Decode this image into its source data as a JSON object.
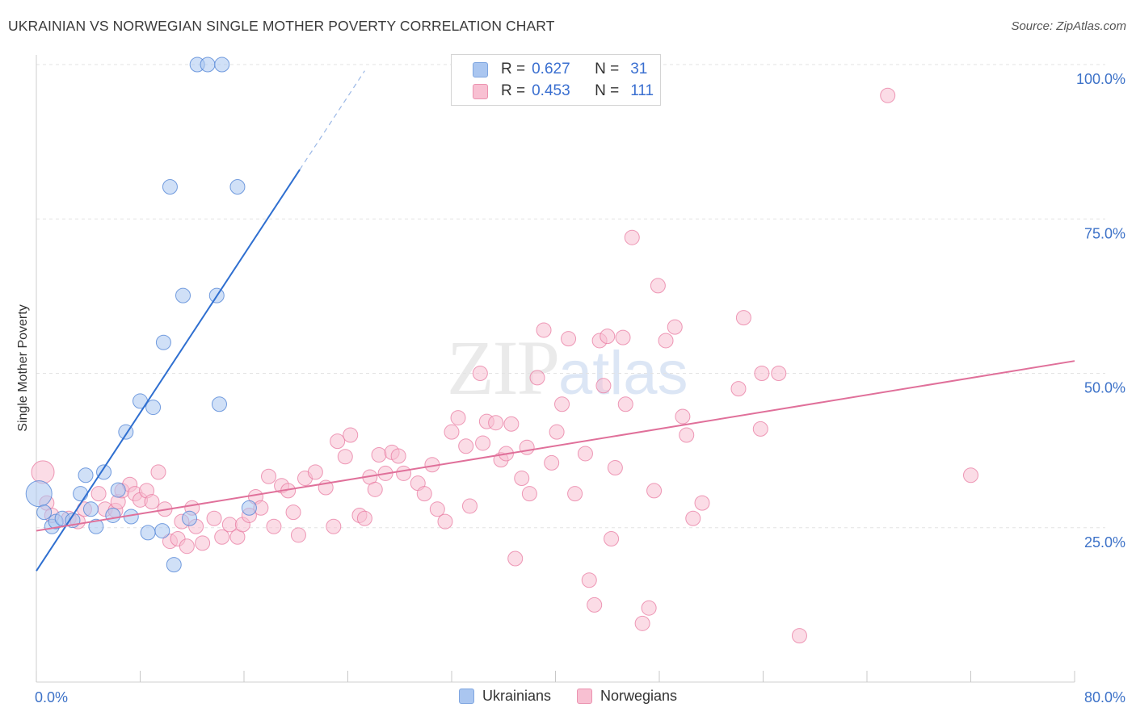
{
  "title": "UKRAINIAN VS NORWEGIAN SINGLE MOTHER POVERTY CORRELATION CHART",
  "source": "Source: ZipAtlas.com",
  "watermark": {
    "zip": "ZIP",
    "atlas": "atlas"
  },
  "legend": {
    "rows": [
      {
        "r_label": "R =",
        "r_value": "0.627",
        "n_label": "N =",
        "n_value": "31",
        "color": "#aac6f0",
        "border": "#7fa6e0"
      },
      {
        "r_label": "R =",
        "r_value": "0.453",
        "n_label": "N =",
        "n_value": "111",
        "color": "#f8c0d2",
        "border": "#eb93b0"
      }
    ]
  },
  "chart_data": {
    "type": "scatter",
    "xlabel": "",
    "ylabel": "Single Mother Poverty",
    "xlim": [
      0,
      80
    ],
    "ylim": [
      0,
      100
    ],
    "x_ticks": [
      {
        "value": 0,
        "label": "0.0%"
      },
      {
        "value": 80,
        "label": "80.0%"
      }
    ],
    "y_ticks": [
      {
        "value": 25,
        "label": "25.0%"
      },
      {
        "value": 50,
        "label": "50.0%"
      },
      {
        "value": 75,
        "label": "75.0%"
      },
      {
        "value": 100,
        "label": "100.0%"
      }
    ],
    "grid": true,
    "legend_position": "top-center",
    "series": [
      {
        "name": "Ukrainians",
        "color": "#4a7fd4",
        "fill": "#aac6f0",
        "trend": {
          "x0": 0,
          "y0": 18,
          "x1": 20.3,
          "y1": 83,
          "dash_x1": 25.3,
          "dash_y1": 99
        },
        "points": [
          [
            0.2,
            30.5
          ],
          [
            0.6,
            27.5
          ],
          [
            1.2,
            25.2
          ],
          [
            1.5,
            26
          ],
          [
            2,
            26.5
          ],
          [
            2.8,
            26.2
          ],
          [
            3.8,
            33.5
          ],
          [
            3.4,
            30.5
          ],
          [
            4.2,
            28
          ],
          [
            4.6,
            25.2
          ],
          [
            5.2,
            34
          ],
          [
            5.9,
            27
          ],
          [
            6.3,
            31.1
          ],
          [
            6.9,
            40.5
          ],
          [
            7.3,
            26.8
          ],
          [
            8,
            45.5
          ],
          [
            9,
            44.5
          ],
          [
            9.7,
            24.5
          ],
          [
            8.6,
            24.2
          ],
          [
            9.8,
            55
          ],
          [
            10.3,
            80.2
          ],
          [
            10.6,
            19
          ],
          [
            11.3,
            62.6
          ],
          [
            11.8,
            26.5
          ],
          [
            12.4,
            100
          ],
          [
            13.2,
            100
          ],
          [
            14.3,
            100
          ],
          [
            13.9,
            62.6
          ],
          [
            14.1,
            45
          ],
          [
            15.5,
            80.2
          ],
          [
            16.4,
            28.2
          ]
        ]
      },
      {
        "name": "Norwegians",
        "color": "#e87aa0",
        "fill": "#f8c0d2",
        "trend": {
          "x0": 0,
          "y0": 24.5,
          "x1": 80,
          "y1": 52
        },
        "points": [
          [
            0.5,
            34
          ],
          [
            0.8,
            29
          ],
          [
            1.2,
            27
          ],
          [
            2.5,
            26.5
          ],
          [
            3.2,
            26
          ],
          [
            3.7,
            28
          ],
          [
            4.8,
            30.5
          ],
          [
            5.3,
            28
          ],
          [
            6.1,
            27.8
          ],
          [
            6.3,
            29.2
          ],
          [
            6.6,
            31
          ],
          [
            7.2,
            32
          ],
          [
            7.6,
            30.5
          ],
          [
            8,
            29.5
          ],
          [
            8.5,
            31
          ],
          [
            8.9,
            29.2
          ],
          [
            9.4,
            34
          ],
          [
            9.9,
            28
          ],
          [
            10.3,
            22.8
          ],
          [
            10.9,
            23.2
          ],
          [
            11.2,
            26
          ],
          [
            11.6,
            22
          ],
          [
            12,
            28.2
          ],
          [
            12.3,
            25.2
          ],
          [
            12.8,
            22.5
          ],
          [
            13.7,
            26.5
          ],
          [
            14.3,
            23.5
          ],
          [
            14.9,
            25.5
          ],
          [
            15.5,
            23.5
          ],
          [
            15.9,
            25.5
          ],
          [
            16.4,
            27
          ],
          [
            16.9,
            30
          ],
          [
            17.3,
            28.2
          ],
          [
            17.9,
            33.3
          ],
          [
            18.3,
            25.2
          ],
          [
            18.9,
            31.8
          ],
          [
            19.4,
            31
          ],
          [
            19.8,
            27.5
          ],
          [
            20.2,
            23.8
          ],
          [
            20.7,
            33
          ],
          [
            21.5,
            34
          ],
          [
            22.3,
            31.5
          ],
          [
            22.9,
            25.2
          ],
          [
            23.2,
            39
          ],
          [
            23.8,
            36.5
          ],
          [
            24.2,
            40
          ],
          [
            24.9,
            27
          ],
          [
            25.3,
            26.5
          ],
          [
            25.7,
            33.2
          ],
          [
            26.4,
            36.8
          ],
          [
            26.9,
            33.8
          ],
          [
            27.4,
            37.2
          ],
          [
            27.9,
            36.6
          ],
          [
            28.3,
            33.8
          ],
          [
            29.4,
            32.2
          ],
          [
            29.9,
            30.5
          ],
          [
            30.5,
            35.2
          ],
          [
            30.9,
            28
          ],
          [
            31.5,
            26
          ],
          [
            32,
            40.5
          ],
          [
            32.5,
            42.8
          ],
          [
            33.1,
            38.2
          ],
          [
            33.4,
            28.5
          ],
          [
            34.2,
            50
          ],
          [
            34.4,
            38.7
          ],
          [
            34.7,
            42.2
          ],
          [
            35.4,
            42
          ],
          [
            35.8,
            36
          ],
          [
            36.2,
            37
          ],
          [
            36.6,
            41.8
          ],
          [
            36.9,
            20
          ],
          [
            37.4,
            33
          ],
          [
            38,
            30.5
          ],
          [
            38.6,
            49.3
          ],
          [
            39.1,
            57
          ],
          [
            39.7,
            35.5
          ],
          [
            40.1,
            40.5
          ],
          [
            40.5,
            45
          ],
          [
            41,
            55.6
          ],
          [
            41.5,
            30.5
          ],
          [
            42.3,
            37
          ],
          [
            42.6,
            16.5
          ],
          [
            43,
            12.5
          ],
          [
            43.4,
            55.3
          ],
          [
            44,
            56
          ],
          [
            44.3,
            23.2
          ],
          [
            44.6,
            34.7
          ],
          [
            45.4,
            45
          ],
          [
            45.9,
            72
          ],
          [
            46.7,
            9.5
          ],
          [
            47.2,
            12
          ],
          [
            47.6,
            31
          ],
          [
            47.9,
            64.2
          ],
          [
            48.5,
            55.3
          ],
          [
            49.2,
            57.5
          ],
          [
            49.8,
            43
          ],
          [
            50.1,
            40
          ],
          [
            50.6,
            26.5
          ],
          [
            51.3,
            29
          ],
          [
            54.1,
            47.5
          ],
          [
            54.5,
            59
          ],
          [
            55.8,
            41
          ],
          [
            55.9,
            50
          ],
          [
            57.2,
            50
          ],
          [
            58.8,
            7.5
          ],
          [
            65.6,
            95
          ],
          [
            72,
            33.5
          ],
          [
            43.7,
            48
          ],
          [
            45.2,
            55.8
          ],
          [
            37.8,
            38
          ],
          [
            26.1,
            31.2
          ]
        ]
      }
    ]
  }
}
